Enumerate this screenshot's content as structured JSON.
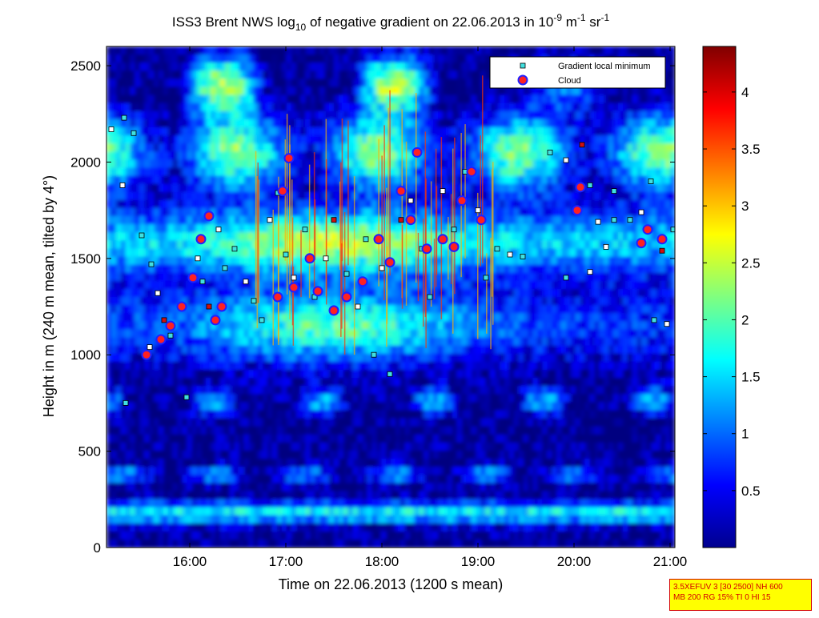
{
  "chart_data": {
    "type": "heatmap",
    "title": {
      "prefix": "ISS3 Brent NWS log",
      "log_base": "10",
      "middle": " of negative gradient on 22.06.2013 in 10",
      "exp1": "-9",
      "unit1": " m",
      "exp2": "-1",
      "unit2": " sr",
      "exp3": "-1"
    },
    "xlabel": "Time on 22.06.2013 (1200 s mean)",
    "ylabel": "Height in m (240 m mean, tilted by 4°)",
    "x_range": [
      "15:08",
      "21:03"
    ],
    "x_ticks": [
      "16:00",
      "17:00",
      "18:00",
      "19:00",
      "20:00",
      "21:00"
    ],
    "y_range": [
      0,
      2600
    ],
    "y_ticks": [
      0,
      500,
      1000,
      1500,
      2000,
      2500
    ],
    "colorbar": {
      "min": 0,
      "max": 4.4,
      "ticks": [
        "0.5",
        "1",
        "1.5",
        "2",
        "2.5",
        "3",
        "3.5",
        "4"
      ],
      "colormap": "jet"
    },
    "legend": {
      "position": "top-right",
      "entries": [
        {
          "name": "Gradient local minimum",
          "marker": "square",
          "color": "#40e0e0"
        },
        {
          "name": "Cloud",
          "marker": "circle",
          "color": "#ff2020"
        }
      ]
    },
    "series": [
      {
        "name": "Gradient local minimum",
        "points": [
          [
            "15:11",
            2170
          ],
          [
            "15:19",
            2230
          ],
          [
            "15:25",
            2150
          ],
          [
            "15:18",
            1880
          ],
          [
            "15:30",
            1620
          ],
          [
            "15:36",
            1470
          ],
          [
            "15:40",
            1320
          ],
          [
            "15:44",
            1180
          ],
          [
            "15:48",
            1100
          ],
          [
            "15:35",
            1040
          ],
          [
            "15:20",
            750
          ],
          [
            "15:58",
            780
          ],
          [
            "16:05",
            1500
          ],
          [
            "16:08",
            1380
          ],
          [
            "16:12",
            1250
          ],
          [
            "16:18",
            1650
          ],
          [
            "16:22",
            1450
          ],
          [
            "16:28",
            1550
          ],
          [
            "16:35",
            1380
          ],
          [
            "16:40",
            1280
          ],
          [
            "16:45",
            1180
          ],
          [
            "16:50",
            1700
          ],
          [
            "16:55",
            1840
          ],
          [
            "17:00",
            1520
          ],
          [
            "17:05",
            1400
          ],
          [
            "17:12",
            1650
          ],
          [
            "17:18",
            1300
          ],
          [
            "17:25",
            1500
          ],
          [
            "17:30",
            1700
          ],
          [
            "17:38",
            1420
          ],
          [
            "17:45",
            1250
          ],
          [
            "17:50",
            1600
          ],
          [
            "17:55",
            1000
          ],
          [
            "18:00",
            1450
          ],
          [
            "18:05",
            900
          ],
          [
            "18:12",
            1700
          ],
          [
            "18:18",
            1800
          ],
          [
            "18:25",
            1550
          ],
          [
            "18:30",
            1300
          ],
          [
            "18:38",
            1850
          ],
          [
            "18:45",
            1650
          ],
          [
            "18:52",
            1950
          ],
          [
            "19:00",
            1750
          ],
          [
            "19:05",
            1400
          ],
          [
            "19:12",
            1550
          ],
          [
            "19:20",
            1520
          ],
          [
            "19:28",
            1510
          ],
          [
            "19:45",
            2050
          ],
          [
            "19:55",
            2010
          ],
          [
            "20:05",
            2090
          ],
          [
            "20:10",
            1880
          ],
          [
            "20:15",
            1690
          ],
          [
            "20:25",
            1700
          ],
          [
            "20:35",
            1700
          ],
          [
            "20:42",
            1740
          ],
          [
            "20:48",
            1900
          ],
          [
            "20:55",
            1540
          ],
          [
            "20:58",
            1160
          ],
          [
            "21:02",
            1650
          ],
          [
            "19:55",
            1400
          ],
          [
            "20:10",
            1430
          ],
          [
            "20:25",
            1850
          ],
          [
            "20:50",
            1180
          ],
          [
            "20:20",
            1560
          ]
        ]
      },
      {
        "name": "Cloud",
        "points": [
          [
            "15:33",
            1000
          ],
          [
            "15:42",
            1080
          ],
          [
            "15:48",
            1150
          ],
          [
            "15:55",
            1250
          ],
          [
            "16:02",
            1400
          ],
          [
            "16:07",
            1600
          ],
          [
            "16:12",
            1720
          ],
          [
            "16:16",
            1180
          ],
          [
            "16:20",
            1250
          ],
          [
            "16:55",
            1300
          ],
          [
            "17:05",
            1350
          ],
          [
            "17:15",
            1500
          ],
          [
            "17:20",
            1330
          ],
          [
            "17:30",
            1230
          ],
          [
            "17:38",
            1300
          ],
          [
            "17:48",
            1380
          ],
          [
            "17:58",
            1600
          ],
          [
            "18:05",
            1480
          ],
          [
            "18:12",
            1850
          ],
          [
            "18:18",
            1700
          ],
          [
            "18:22",
            2050
          ],
          [
            "18:28",
            1550
          ],
          [
            "18:38",
            1600
          ],
          [
            "18:45",
            1560
          ],
          [
            "18:50",
            1800
          ],
          [
            "18:56",
            1950
          ],
          [
            "19:02",
            1700
          ],
          [
            "20:02",
            1750
          ],
          [
            "20:04",
            1870
          ],
          [
            "20:42",
            1580
          ],
          [
            "20:46",
            1650
          ],
          [
            "20:55",
            1600
          ],
          [
            "17:02",
            2020
          ],
          [
            "16:58",
            1850
          ]
        ]
      }
    ]
  },
  "corner_box": {
    "line1": "3.5XEFUV 3 [30 2500] NH 600",
    "line2": "MB 200 RG 15% TI 0 HI 15"
  }
}
